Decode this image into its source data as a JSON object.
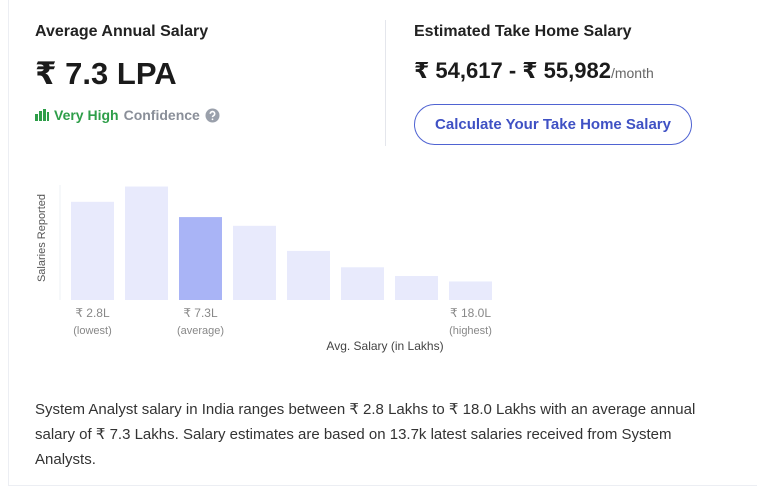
{
  "average": {
    "title": "Average Annual Salary",
    "value": "₹ 7.3 LPA",
    "confidence_level": "Very High",
    "confidence_text": "Confidence"
  },
  "take_home": {
    "title": "Estimated Take Home Salary",
    "range": "₹ 54,617 - ₹ 55,982",
    "unit": "/month",
    "button": "Calculate Your Take Home Salary"
  },
  "chart_data": {
    "type": "bar",
    "y_label": "Salaries Reported",
    "x_label": "Avg. Salary (in Lakhs)",
    "categories": [
      "₹ 2.8L",
      null,
      "₹ 7.3L",
      null,
      null,
      null,
      null,
      "₹ 18.0L"
    ],
    "category_notes": [
      "(lowest)",
      null,
      "(average)",
      null,
      null,
      null,
      null,
      "(highest)"
    ],
    "values": [
      90,
      104,
      76,
      68,
      45,
      30,
      22,
      17
    ],
    "colors": [
      "#e8eafc",
      "#e8eafc",
      "#a9b4f6",
      "#e8eafc",
      "#e8eafc",
      "#e8eafc",
      "#e8eafc",
      "#e8eafc"
    ],
    "ylim": [
      0,
      110
    ]
  },
  "description": "System Analyst salary in India ranges between ₹ 2.8 Lakhs to ₹ 18.0 Lakhs with an average annual salary of ₹ 7.3 Lakhs. Salary estimates are based on 13.7k latest salaries received from System Analysts."
}
